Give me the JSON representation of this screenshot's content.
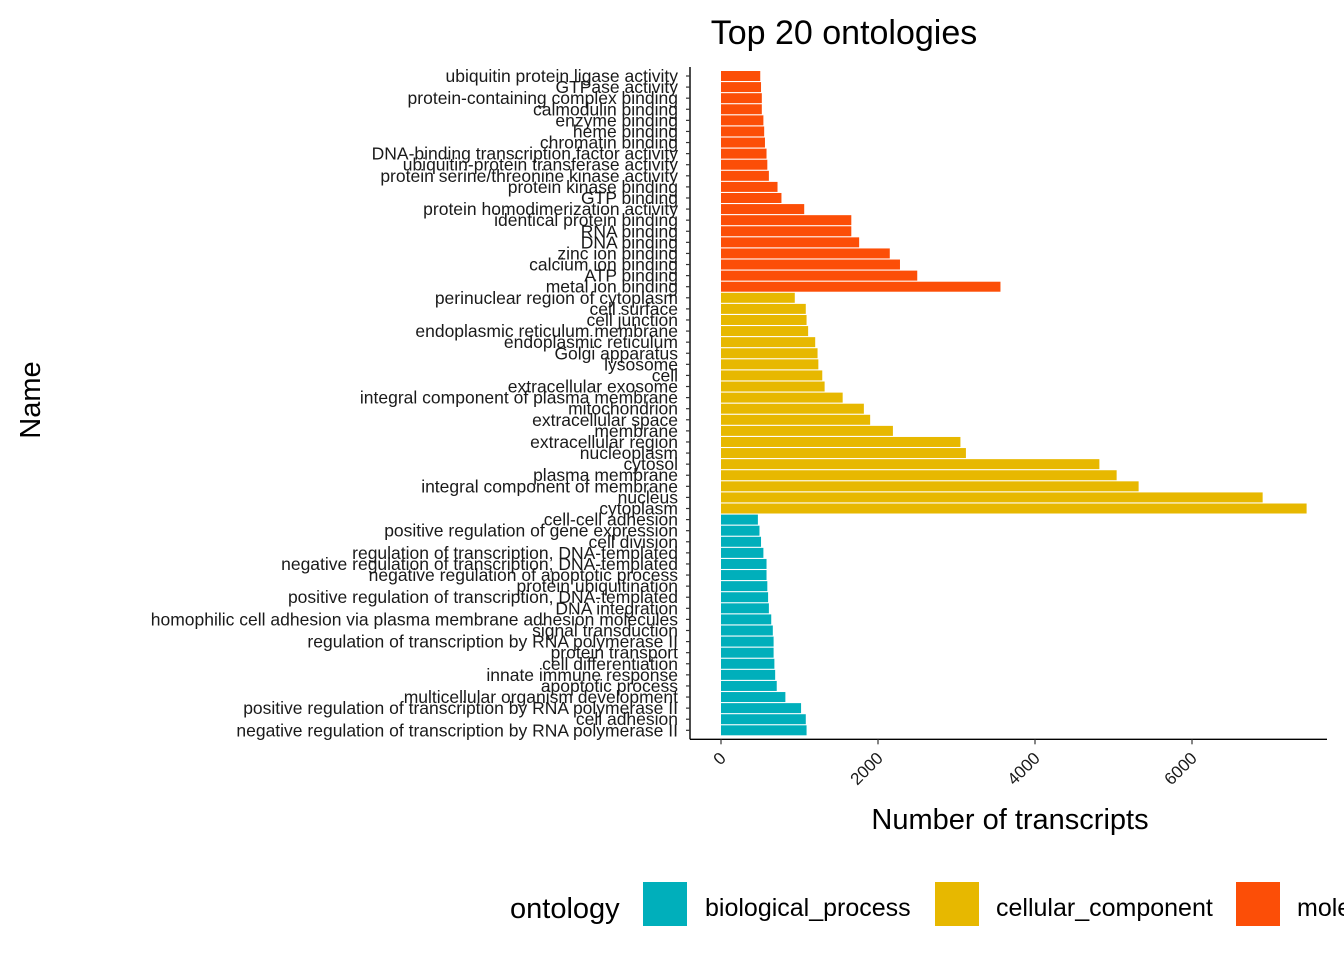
{
  "chart_data": {
    "type": "bar",
    "orientation": "horizontal",
    "title": "Top 20 ontologies",
    "xlabel": "Number of transcripts",
    "ylabel": "Name",
    "xlim": [
      0,
      7600
    ],
    "xticks": [
      0,
      2000,
      4000,
      6000
    ],
    "grid": false,
    "legend": {
      "title": "ontology",
      "position": "bottom",
      "entries": [
        {
          "label": "biological_process",
          "color": "#00AFBB"
        },
        {
          "label": "cellular_component",
          "color": "#E7B800"
        },
        {
          "label": "molecular_function",
          "color": "#FC4E07"
        }
      ]
    },
    "bars": [
      {
        "category": "ubiquitin protein ligase activity",
        "value": 500,
        "ontology": "molecular_function"
      },
      {
        "category": "GTPase activity",
        "value": 510,
        "ontology": "molecular_function"
      },
      {
        "category": "protein-containing complex binding",
        "value": 520,
        "ontology": "molecular_function"
      },
      {
        "category": "calmodulin binding",
        "value": 520,
        "ontology": "molecular_function"
      },
      {
        "category": "enzyme binding",
        "value": 540,
        "ontology": "molecular_function"
      },
      {
        "category": "heme binding",
        "value": 550,
        "ontology": "molecular_function"
      },
      {
        "category": "chromatin binding",
        "value": 560,
        "ontology": "molecular_function"
      },
      {
        "category": "DNA-binding transcription factor activity",
        "value": 580,
        "ontology": "molecular_function"
      },
      {
        "category": "ubiquitin-protein transferase activity",
        "value": 590,
        "ontology": "molecular_function"
      },
      {
        "category": "protein serine/threonine kinase activity",
        "value": 610,
        "ontology": "molecular_function"
      },
      {
        "category": "protein kinase binding",
        "value": 720,
        "ontology": "molecular_function"
      },
      {
        "category": "GTP binding",
        "value": 770,
        "ontology": "molecular_function"
      },
      {
        "category": "protein homodimerization activity",
        "value": 1060,
        "ontology": "molecular_function"
      },
      {
        "category": "identical protein binding",
        "value": 1660,
        "ontology": "molecular_function"
      },
      {
        "category": "RNA binding",
        "value": 1660,
        "ontology": "molecular_function"
      },
      {
        "category": "DNA binding",
        "value": 1760,
        "ontology": "molecular_function"
      },
      {
        "category": "zinc ion binding",
        "value": 2150,
        "ontology": "molecular_function"
      },
      {
        "category": "calcium ion binding",
        "value": 2280,
        "ontology": "molecular_function"
      },
      {
        "category": "ATP binding",
        "value": 2500,
        "ontology": "molecular_function"
      },
      {
        "category": "metal ion binding",
        "value": 3560,
        "ontology": "molecular_function"
      },
      {
        "category": "perinuclear region of cytoplasm",
        "value": 940,
        "ontology": "cellular_component"
      },
      {
        "category": "cell surface",
        "value": 1080,
        "ontology": "cellular_component"
      },
      {
        "category": "cell junction",
        "value": 1090,
        "ontology": "cellular_component"
      },
      {
        "category": "endoplasmic reticulum membrane",
        "value": 1110,
        "ontology": "cellular_component"
      },
      {
        "category": "endoplasmic reticulum",
        "value": 1200,
        "ontology": "cellular_component"
      },
      {
        "category": "Golgi apparatus",
        "value": 1230,
        "ontology": "cellular_component"
      },
      {
        "category": "lysosome",
        "value": 1240,
        "ontology": "cellular_component"
      },
      {
        "category": "cell",
        "value": 1290,
        "ontology": "cellular_component"
      },
      {
        "category": "extracellular exosome",
        "value": 1320,
        "ontology": "cellular_component"
      },
      {
        "category": "integral component of plasma membrane",
        "value": 1550,
        "ontology": "cellular_component"
      },
      {
        "category": "mitochondrion",
        "value": 1820,
        "ontology": "cellular_component"
      },
      {
        "category": "extracellular space",
        "value": 1900,
        "ontology": "cellular_component"
      },
      {
        "category": "membrane",
        "value": 2190,
        "ontology": "cellular_component"
      },
      {
        "category": "extracellular region",
        "value": 3050,
        "ontology": "cellular_component"
      },
      {
        "category": "nucleoplasm",
        "value": 3120,
        "ontology": "cellular_component"
      },
      {
        "category": "cytosol",
        "value": 4820,
        "ontology": "cellular_component"
      },
      {
        "category": "plasma membrane",
        "value": 5040,
        "ontology": "cellular_component"
      },
      {
        "category": "integral component of membrane",
        "value": 5320,
        "ontology": "cellular_component"
      },
      {
        "category": "nucleus",
        "value": 6900,
        "ontology": "cellular_component"
      },
      {
        "category": "cytoplasm",
        "value": 7460,
        "ontology": "cellular_component"
      },
      {
        "category": "cell-cell adhesion",
        "value": 470,
        "ontology": "biological_process"
      },
      {
        "category": "positive regulation of gene expression",
        "value": 490,
        "ontology": "biological_process"
      },
      {
        "category": "cell division",
        "value": 510,
        "ontology": "biological_process"
      },
      {
        "category": "regulation of transcription, DNA-templated",
        "value": 540,
        "ontology": "biological_process"
      },
      {
        "category": "negative regulation of transcription, DNA-templated",
        "value": 580,
        "ontology": "biological_process"
      },
      {
        "category": "negative regulation of apoptotic process",
        "value": 580,
        "ontology": "biological_process"
      },
      {
        "category": "protein ubiquitination",
        "value": 590,
        "ontology": "biological_process"
      },
      {
        "category": "positive regulation of transcription, DNA-templated",
        "value": 600,
        "ontology": "biological_process"
      },
      {
        "category": "DNA integration",
        "value": 610,
        "ontology": "biological_process"
      },
      {
        "category": "homophilic cell adhesion via plasma membrane adhesion molecules",
        "value": 640,
        "ontology": "biological_process"
      },
      {
        "category": "signal transduction",
        "value": 660,
        "ontology": "biological_process"
      },
      {
        "category": "regulation of transcription by RNA polymerase II",
        "value": 670,
        "ontology": "biological_process"
      },
      {
        "category": "protein transport",
        "value": 670,
        "ontology": "biological_process"
      },
      {
        "category": "cell differentiation",
        "value": 680,
        "ontology": "biological_process"
      },
      {
        "category": "innate immune response",
        "value": 690,
        "ontology": "biological_process"
      },
      {
        "category": "apoptotic process",
        "value": 710,
        "ontology": "biological_process"
      },
      {
        "category": "multicellular organism development",
        "value": 820,
        "ontology": "biological_process"
      },
      {
        "category": "positive regulation of transcription by RNA polymerase II",
        "value": 1020,
        "ontology": "biological_process"
      },
      {
        "category": "cell adhesion",
        "value": 1080,
        "ontology": "biological_process"
      },
      {
        "category": "negative regulation of transcription by RNA polymerase II",
        "value": 1090,
        "ontology": "biological_process"
      }
    ]
  }
}
